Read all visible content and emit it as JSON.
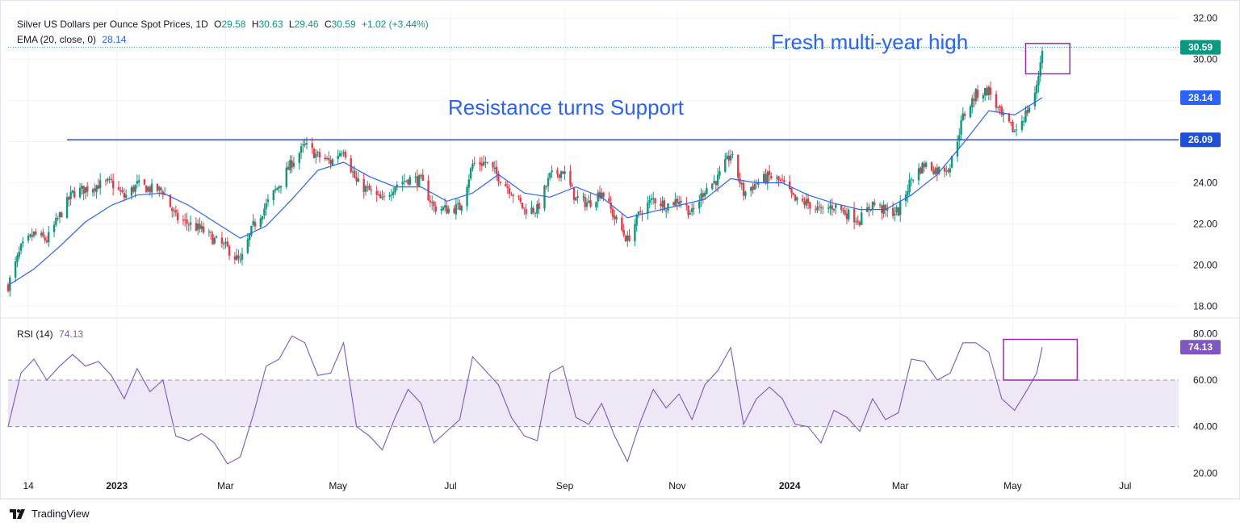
{
  "header": {
    "symbol": "Silver US Dollars per Ounce Spot Prices, 1D",
    "o_label": "O",
    "o_value": "29.58",
    "h_label": "H",
    "h_value": "30.63",
    "l_label": "L",
    "l_value": "29.46",
    "c_label": "C",
    "c_value": "30.59",
    "change": "+1.02 (+3.44%)",
    "ema_label": "EMA (20, close, 0)",
    "ema_value": "28.14",
    "rsi_label": "RSI (14)",
    "rsi_value": "74.13"
  },
  "branding": {
    "name": "TradingView"
  },
  "colors": {
    "up": "#089981",
    "down": "#f23645",
    "ema": "#2962ff",
    "rsi": "#7e57c2",
    "rsi_band": "#ede7f6",
    "annotation_text": "#2962ff",
    "box": "#9c27b0",
    "price_badge": "#089981",
    "support_line": "#1f4fd8",
    "grid": "#f0f3fa"
  },
  "chart_data": [
    {
      "type": "candlestick",
      "title": "Silver US Dollars per Ounce Spot Prices, 1D",
      "ylim": [
        17.5,
        32.5
      ],
      "y_ticks": [
        "32.00",
        "30.00",
        "28.00",
        "26.00",
        "24.00",
        "22.00",
        "20.00",
        "18.00"
      ],
      "x_ticks": [
        "14",
        "2023",
        "Mar",
        "May",
        "Jul",
        "Sep",
        "Nov",
        "2024",
        "Mar",
        "May",
        "Jul"
      ],
      "x_range": [
        "2022-11-03",
        "2024-07-30"
      ],
      "grid": true,
      "close_path": [
        [
          "2022-11-03",
          19.0
        ],
        [
          "2022-11-10",
          20.8
        ],
        [
          "2022-11-17",
          21.5
        ],
        [
          "2022-11-24",
          21.2
        ],
        [
          "2022-12-01",
          22.4
        ],
        [
          "2022-12-08",
          23.5
        ],
        [
          "2022-12-15",
          23.7
        ],
        [
          "2022-12-22",
          23.9
        ],
        [
          "2022-12-29",
          24.0
        ],
        [
          "2023-01-05",
          23.3
        ],
        [
          "2023-01-12",
          23.9
        ],
        [
          "2023-01-19",
          23.7
        ],
        [
          "2023-01-26",
          23.6
        ],
        [
          "2023-02-02",
          22.3
        ],
        [
          "2023-02-09",
          22.0
        ],
        [
          "2023-02-16",
          21.7
        ],
        [
          "2023-02-23",
          21.2
        ],
        [
          "2023-03-02",
          20.8
        ],
        [
          "2023-03-09",
          20.1
        ],
        [
          "2023-03-16",
          21.9
        ],
        [
          "2023-03-23",
          22.9
        ],
        [
          "2023-03-30",
          23.9
        ],
        [
          "2023-04-06",
          25.0
        ],
        [
          "2023-04-13",
          25.8
        ],
        [
          "2023-04-20",
          25.3
        ],
        [
          "2023-04-27",
          25.0
        ],
        [
          "2023-05-04",
          25.7
        ],
        [
          "2023-05-11",
          24.0
        ],
        [
          "2023-05-18",
          23.6
        ],
        [
          "2023-05-25",
          23.1
        ],
        [
          "2023-06-01",
          23.9
        ],
        [
          "2023-06-08",
          24.2
        ],
        [
          "2023-06-15",
          24.1
        ],
        [
          "2023-06-22",
          22.8
        ],
        [
          "2023-06-29",
          22.7
        ],
        [
          "2023-07-06",
          22.8
        ],
        [
          "2023-07-13",
          24.9
        ],
        [
          "2023-07-20",
          25.0
        ],
        [
          "2023-07-27",
          24.3
        ],
        [
          "2023-08-03",
          23.6
        ],
        [
          "2023-08-10",
          22.7
        ],
        [
          "2023-08-17",
          22.7
        ],
        [
          "2023-08-24",
          24.3
        ],
        [
          "2023-08-31",
          24.6
        ],
        [
          "2023-09-07",
          23.2
        ],
        [
          "2023-09-14",
          23.0
        ],
        [
          "2023-09-21",
          23.6
        ],
        [
          "2023-09-28",
          22.3
        ],
        [
          "2023-10-05",
          21.2
        ],
        [
          "2023-10-12",
          22.6
        ],
        [
          "2023-10-19",
          23.2
        ],
        [
          "2023-10-26",
          22.9
        ],
        [
          "2023-11-02",
          23.2
        ],
        [
          "2023-11-09",
          22.5
        ],
        [
          "2023-11-16",
          23.7
        ],
        [
          "2023-11-23",
          24.2
        ],
        [
          "2023-11-30",
          25.4
        ],
        [
          "2023-12-07",
          23.5
        ],
        [
          "2023-12-14",
          24.0
        ],
        [
          "2023-12-21",
          24.3
        ],
        [
          "2023-12-28",
          24.0
        ],
        [
          "2024-01-04",
          23.1
        ],
        [
          "2024-01-11",
          23.0
        ],
        [
          "2024-01-18",
          22.6
        ],
        [
          "2024-01-25",
          22.9
        ],
        [
          "2024-02-01",
          22.5
        ],
        [
          "2024-02-08",
          22.2
        ],
        [
          "2024-02-15",
          23.0
        ],
        [
          "2024-02-22",
          22.6
        ],
        [
          "2024-02-29",
          22.6
        ],
        [
          "2024-03-07",
          24.2
        ],
        [
          "2024-03-14",
          24.9
        ],
        [
          "2024-03-21",
          24.6
        ],
        [
          "2024-03-28",
          24.8
        ],
        [
          "2024-04-04",
          27.2
        ],
        [
          "2024-04-11",
          28.3
        ],
        [
          "2024-04-18",
          28.5
        ],
        [
          "2024-04-25",
          27.2
        ],
        [
          "2024-05-02",
          26.5
        ],
        [
          "2024-05-09",
          27.5
        ],
        [
          "2024-05-14",
          28.6
        ],
        [
          "2024-05-17",
          30.59
        ]
      ],
      "series": [
        {
          "name": "EMA (20, close, 0)",
          "type": "line",
          "points": [
            [
              "2022-11-03",
              19.0
            ],
            [
              "2022-11-17",
              19.8
            ],
            [
              "2022-12-01",
              20.9
            ],
            [
              "2022-12-15",
              22.1
            ],
            [
              "2022-12-29",
              22.9
            ],
            [
              "2023-01-12",
              23.4
            ],
            [
              "2023-01-26",
              23.5
            ],
            [
              "2023-02-09",
              22.9
            ],
            [
              "2023-02-23",
              22.1
            ],
            [
              "2023-03-09",
              21.3
            ],
            [
              "2023-03-23",
              21.9
            ],
            [
              "2023-04-06",
              23.2
            ],
            [
              "2023-04-20",
              24.6
            ],
            [
              "2023-05-04",
              25.0
            ],
            [
              "2023-05-18",
              24.3
            ],
            [
              "2023-06-01",
              23.8
            ],
            [
              "2023-06-15",
              23.8
            ],
            [
              "2023-06-29",
              23.1
            ],
            [
              "2023-07-13",
              23.5
            ],
            [
              "2023-07-27",
              24.4
            ],
            [
              "2023-08-10",
              23.5
            ],
            [
              "2023-08-24",
              23.3
            ],
            [
              "2023-09-07",
              23.8
            ],
            [
              "2023-09-21",
              23.3
            ],
            [
              "2023-10-05",
              22.3
            ],
            [
              "2023-10-19",
              22.6
            ],
            [
              "2023-11-02",
              22.9
            ],
            [
              "2023-11-16",
              23.2
            ],
            [
              "2023-11-30",
              24.2
            ],
            [
              "2023-12-14",
              24.0
            ],
            [
              "2023-12-28",
              24.0
            ],
            [
              "2024-01-11",
              23.4
            ],
            [
              "2024-01-25",
              23.0
            ],
            [
              "2024-02-08",
              22.7
            ],
            [
              "2024-02-22",
              22.7
            ],
            [
              "2024-03-07",
              23.4
            ],
            [
              "2024-03-21",
              24.4
            ],
            [
              "2024-04-04",
              25.9
            ],
            [
              "2024-04-18",
              27.5
            ],
            [
              "2024-05-02",
              27.3
            ],
            [
              "2024-05-17",
              28.14
            ]
          ]
        }
      ],
      "last_price": 30.59,
      "price_labels": [
        "30.59",
        "28.14",
        "26.09"
      ],
      "horizontal_line": {
        "value": 26.09,
        "from": "2022-12-05"
      },
      "annotations": [
        "Fresh multi-year high",
        "Resistance turns Support"
      ]
    },
    {
      "type": "line",
      "title": "RSI (14)",
      "ylim": [
        17,
        86
      ],
      "y_ticks": [
        "80.00",
        "60.00",
        "40.00",
        "20.00"
      ],
      "band": [
        40,
        60
      ],
      "last_value": 74.13,
      "value_label": "74.13",
      "points": [
        [
          "2022-11-03",
          40
        ],
        [
          "2022-11-10",
          63
        ],
        [
          "2022-11-17",
          69
        ],
        [
          "2022-11-24",
          60
        ],
        [
          "2022-12-01",
          66
        ],
        [
          "2022-12-08",
          71
        ],
        [
          "2022-12-15",
          66
        ],
        [
          "2022-12-22",
          68
        ],
        [
          "2022-12-29",
          62
        ],
        [
          "2023-01-05",
          52
        ],
        [
          "2023-01-12",
          65
        ],
        [
          "2023-01-19",
          55
        ],
        [
          "2023-01-26",
          60
        ],
        [
          "2023-02-02",
          36
        ],
        [
          "2023-02-09",
          34
        ],
        [
          "2023-02-16",
          37
        ],
        [
          "2023-02-23",
          33
        ],
        [
          "2023-03-02",
          24
        ],
        [
          "2023-03-09",
          27
        ],
        [
          "2023-03-16",
          45
        ],
        [
          "2023-03-23",
          66
        ],
        [
          "2023-03-30",
          69
        ],
        [
          "2023-04-06",
          79
        ],
        [
          "2023-04-13",
          76
        ],
        [
          "2023-04-20",
          62
        ],
        [
          "2023-04-27",
          63
        ],
        [
          "2023-05-04",
          76
        ],
        [
          "2023-05-11",
          40
        ],
        [
          "2023-05-18",
          36
        ],
        [
          "2023-05-25",
          30
        ],
        [
          "2023-06-01",
          44
        ],
        [
          "2023-06-08",
          56
        ],
        [
          "2023-06-15",
          50
        ],
        [
          "2023-06-22",
          33
        ],
        [
          "2023-06-29",
          38
        ],
        [
          "2023-07-06",
          43
        ],
        [
          "2023-07-13",
          70
        ],
        [
          "2023-07-20",
          64
        ],
        [
          "2023-07-27",
          58
        ],
        [
          "2023-08-03",
          44
        ],
        [
          "2023-08-10",
          36
        ],
        [
          "2023-08-17",
          34
        ],
        [
          "2023-08-24",
          63
        ],
        [
          "2023-08-31",
          66
        ],
        [
          "2023-09-07",
          44
        ],
        [
          "2023-09-14",
          41
        ],
        [
          "2023-09-21",
          50
        ],
        [
          "2023-09-28",
          36
        ],
        [
          "2023-10-05",
          25
        ],
        [
          "2023-10-12",
          42
        ],
        [
          "2023-10-19",
          56
        ],
        [
          "2023-10-26",
          48
        ],
        [
          "2023-11-02",
          54
        ],
        [
          "2023-11-09",
          43
        ],
        [
          "2023-11-16",
          58
        ],
        [
          "2023-11-23",
          64
        ],
        [
          "2023-11-30",
          74
        ],
        [
          "2023-12-07",
          41
        ],
        [
          "2023-12-14",
          52
        ],
        [
          "2023-12-21",
          57
        ],
        [
          "2023-12-28",
          52
        ],
        [
          "2024-01-04",
          41
        ],
        [
          "2024-01-11",
          40
        ],
        [
          "2024-01-18",
          33
        ],
        [
          "2024-01-25",
          47
        ],
        [
          "2024-02-01",
          44
        ],
        [
          "2024-02-08",
          38
        ],
        [
          "2024-02-15",
          52
        ],
        [
          "2024-02-22",
          43
        ],
        [
          "2024-02-29",
          46
        ],
        [
          "2024-03-07",
          69
        ],
        [
          "2024-03-14",
          68
        ],
        [
          "2024-03-21",
          60
        ],
        [
          "2024-03-28",
          63
        ],
        [
          "2024-04-04",
          76
        ],
        [
          "2024-04-11",
          76
        ],
        [
          "2024-04-18",
          72
        ],
        [
          "2024-04-25",
          52
        ],
        [
          "2024-05-02",
          47
        ],
        [
          "2024-05-09",
          56
        ],
        [
          "2024-05-14",
          63
        ],
        [
          "2024-05-17",
          74.13
        ]
      ]
    }
  ]
}
